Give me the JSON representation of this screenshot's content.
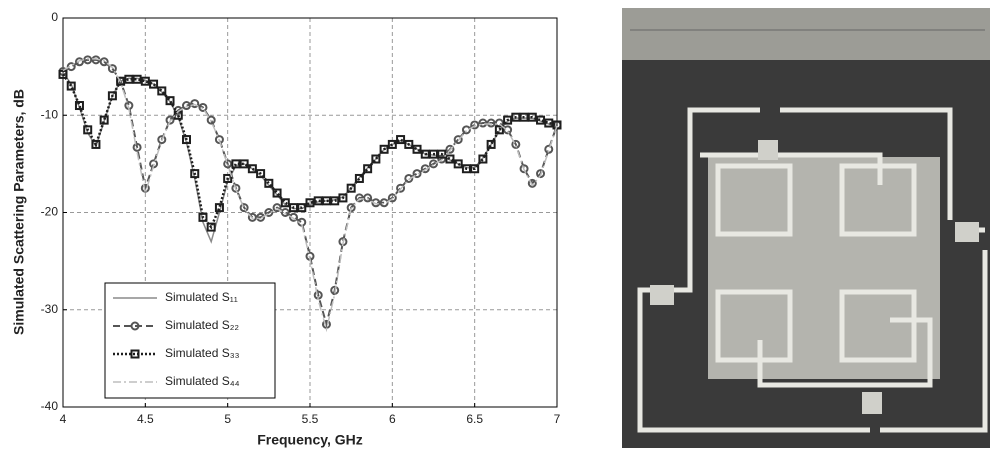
{
  "chart_data": {
    "type": "line",
    "xlabel": "Frequency, GHz",
    "ylabel": "Simulated Scattering Parameters, dB",
    "xlim": [
      4,
      7
    ],
    "xticks": [
      4,
      4.5,
      5,
      5.5,
      6,
      6.5,
      7
    ],
    "ylim": [
      -40,
      0
    ],
    "yticks": [
      -40,
      -30,
      -20,
      -10,
      0
    ],
    "grid": true,
    "legend": "lower-left",
    "x": [
      4,
      4.05,
      4.1,
      4.15,
      4.2,
      4.25,
      4.3,
      4.35,
      4.4,
      4.45,
      4.5,
      4.55,
      4.6,
      4.65,
      4.7,
      4.75,
      4.8,
      4.85,
      4.9,
      4.95,
      5,
      5.05,
      5.1,
      5.15,
      5.2,
      5.25,
      5.3,
      5.35,
      5.4,
      5.45,
      5.5,
      5.55,
      5.6,
      5.65,
      5.7,
      5.75,
      5.8,
      5.85,
      5.9,
      5.95,
      6,
      6.05,
      6.1,
      6.15,
      6.2,
      6.25,
      6.3,
      6.35,
      6.4,
      6.45,
      6.5,
      6.55,
      6.6,
      6.65,
      6.7,
      6.75,
      6.8,
      6.85,
      6.9,
      6.95,
      7
    ],
    "series": [
      {
        "name": "Simulated S₁₁",
        "color": "#8a8a8a",
        "dash": "solid",
        "marker": "none",
        "values": [
          -5.6,
          -6.8,
          -9.2,
          -11.8,
          -13.2,
          -10.6,
          -8,
          -6.5,
          -6.2,
          -6.2,
          -6.4,
          -6.8,
          -7.6,
          -8.6,
          -10.2,
          -12.8,
          -16.5,
          -21,
          -23,
          -20,
          -16.8,
          -15.2,
          -15,
          -15.5,
          -16.2,
          -17.2,
          -18.2,
          -19.2,
          -19.6,
          -19.6,
          -19.2,
          -18.9,
          -18.8,
          -18.7,
          -18.4,
          -17.5,
          -16.4,
          -15.4,
          -14.5,
          -13.5,
          -13,
          -12.6,
          -13,
          -13.5,
          -14,
          -14.1,
          -14.2,
          -14.6,
          -15,
          -15.4,
          -15.4,
          -14.4,
          -13,
          -11.6,
          -10.6,
          -10.3,
          -10.3,
          -10.3,
          -10.6,
          -10.9,
          -11.2
        ]
      },
      {
        "name": "Simulated S₂₂",
        "color": "#555555",
        "dash": "dashed",
        "marker": "circle",
        "values": [
          -5.5,
          -5,
          -4.5,
          -4.3,
          -4.3,
          -4.5,
          -5.2,
          -6.5,
          -9,
          -13.3,
          -17.5,
          -15,
          -12.5,
          -10.5,
          -9.5,
          -9,
          -8.8,
          -9.2,
          -10.5,
          -12.5,
          -15,
          -17.5,
          -19.5,
          -20.5,
          -20.5,
          -20,
          -19.5,
          -20,
          -20.5,
          -21,
          -24.5,
          -28.5,
          -31.5,
          -28,
          -23,
          -19.5,
          -18.5,
          -18.5,
          -19,
          -19,
          -18.5,
          -17.5,
          -16.5,
          -16,
          -15.5,
          -15,
          -14.5,
          -13.5,
          -12.5,
          -11.5,
          -11,
          -10.8,
          -10.8,
          -10.8,
          -11.5,
          -13,
          -15.5,
          -17,
          -16,
          -13.5,
          -11
        ]
      },
      {
        "name": "Simulated S₃₃",
        "color": "#1e1e1e",
        "dash": "dotted",
        "marker": "square",
        "values": [
          -5.8,
          -7,
          -9,
          -11.5,
          -13,
          -10.5,
          -8,
          -6.5,
          -6.3,
          -6.3,
          -6.5,
          -6.8,
          -7.5,
          -8.5,
          -10,
          -12.5,
          -16,
          -20.5,
          -21.5,
          -19.5,
          -16.5,
          -15,
          -15,
          -15.5,
          -16,
          -17,
          -18,
          -19,
          -19.5,
          -19.5,
          -19,
          -18.8,
          -18.8,
          -18.8,
          -18.5,
          -17.5,
          -16.5,
          -15.5,
          -14.5,
          -13.5,
          -13,
          -12.5,
          -13,
          -13.5,
          -14,
          -14,
          -14,
          -14.5,
          -15,
          -15.5,
          -15.5,
          -14.5,
          -13,
          -11.5,
          -10.5,
          -10.2,
          -10.2,
          -10.2,
          -10.5,
          -10.8,
          -11
        ]
      },
      {
        "name": "Simulated S₄₄",
        "color": "#bdbdbd",
        "dash": "dashdot",
        "marker": "none",
        "values": [
          -5.4,
          -4.9,
          -4.4,
          -4.2,
          -4.2,
          -4.4,
          -5.1,
          -6.6,
          -9.3,
          -13.8,
          -18,
          -15.2,
          -12.6,
          -10.6,
          -9.6,
          -9.1,
          -8.9,
          -9.3,
          -10.6,
          -12.6,
          -15.1,
          -17.6,
          -19.6,
          -20.6,
          -20.6,
          -20.1,
          -19.6,
          -20.1,
          -20.6,
          -21.2,
          -24.8,
          -29,
          -32,
          -28.4,
          -23.2,
          -19.6,
          -18.6,
          -18.6,
          -19.1,
          -19.1,
          -18.6,
          -17.6,
          -16.6,
          -16.1,
          -15.6,
          -15.1,
          -14.6,
          -13.6,
          -12.6,
          -11.6,
          -11.1,
          -10.9,
          -10.9,
          -10.9,
          -11.6,
          -13.1,
          -15.6,
          -17.2,
          -16.2,
          -13.6,
          -11.1
        ]
      }
    ]
  }
}
